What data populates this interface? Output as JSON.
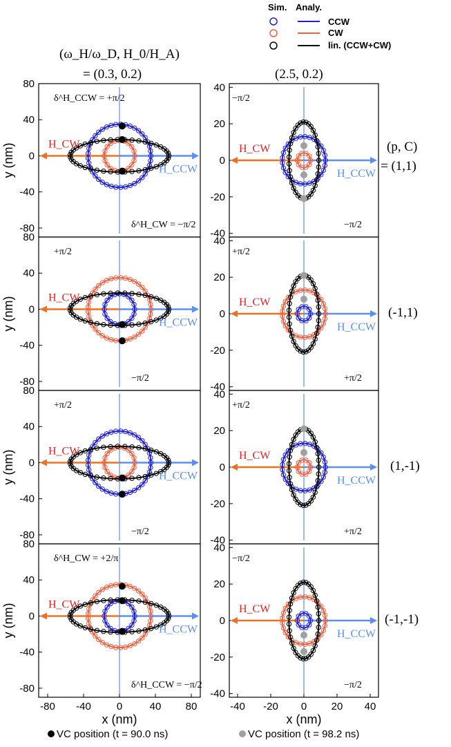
{
  "colors": {
    "ccw": "#1f1fd6",
    "cw": "#f06040",
    "lin": "#000000",
    "ccw_field": "#5b8ff0",
    "cw_field": "#f07020",
    "dot_black": "#000000",
    "dot_gray": "#a0a0a0"
  },
  "legend": {
    "sim_header": "Sim.",
    "analy_header": "Analy.",
    "entries": [
      {
        "label": "CCW",
        "color_key": "ccw"
      },
      {
        "label": "CW",
        "color_key": "cw"
      },
      {
        "label": "lin. (CCW+CW)",
        "color_key": "lin"
      }
    ]
  },
  "column_header": {
    "params_label": "(ω_H/ω_D, H_0/H_A)",
    "col1": "= (0.3, 0.2)",
    "col2": "(2.5, 0.2)"
  },
  "row_header": {
    "params_label": "(p, C)",
    "rows": [
      "= (1,1)",
      "(-1,1)",
      "(1,-1)",
      "(-1,-1)"
    ]
  },
  "bottom_legend": {
    "black": "VC position (t = 90.0 ns)",
    "gray": "VC position (t = 98.2 ns)"
  },
  "field_labels": {
    "h_cw": "H_CW",
    "h_ccw": "H_CCW"
  },
  "chart_data": [
    {
      "type": "scatter",
      "panel": "row1-col1",
      "xlabel": "",
      "ylabel": "y (nm)",
      "xlim": [
        -90,
        90
      ],
      "ylim": [
        -90,
        80
      ],
      "yticks": [
        -80,
        -40,
        0,
        40,
        80
      ],
      "series": [
        {
          "name": "CCW",
          "rx": 35,
          "ry": 35
        },
        {
          "name": "CW",
          "rx": 17,
          "ry": 17
        },
        {
          "name": "lin. (CCW+CW)",
          "rx": 55,
          "ry": 18
        }
      ],
      "annotations": [
        "δ^H_CCW = +π/2",
        "δ^H_CW = −π/2"
      ],
      "vc_black": [
        [
          3,
          33
        ],
        [
          3,
          18
        ],
        [
          3,
          -17
        ]
      ],
      "vc_gray": []
    },
    {
      "type": "scatter",
      "panel": "row1-col2",
      "xlabel": "",
      "ylabel": "",
      "xlim": [
        -45,
        45
      ],
      "ylim": [
        -42,
        42
      ],
      "yticks": [
        -40,
        -20,
        0,
        20,
        40
      ],
      "series": [
        {
          "name": "CCW",
          "rx": 13,
          "ry": 13
        },
        {
          "name": "CW",
          "rx": 4,
          "ry": 4
        },
        {
          "name": "lin. (CCW+CW)",
          "rx": 9,
          "ry": 21
        }
      ],
      "annotations": [
        "−π/2",
        "−π/2"
      ],
      "vc_black": [],
      "vc_gray": [
        [
          0,
          8
        ],
        [
          0,
          -8
        ],
        [
          0,
          -21
        ]
      ]
    },
    {
      "type": "scatter",
      "panel": "row2-col1",
      "xlabel": "",
      "ylabel": "y (nm)",
      "xlim": [
        -90,
        90
      ],
      "ylim": [
        -90,
        80
      ],
      "yticks": [
        -80,
        -40,
        0,
        40,
        80
      ],
      "series": [
        {
          "name": "CCW",
          "rx": 17,
          "ry": 17
        },
        {
          "name": "CW",
          "rx": 35,
          "ry": 35
        },
        {
          "name": "lin. (CCW+CW)",
          "rx": 55,
          "ry": 18
        }
      ],
      "annotations": [
        "+π/2",
        "−π/2"
      ],
      "vc_black": [
        [
          3,
          -17
        ],
        [
          3,
          -35
        ]
      ],
      "vc_gray": []
    },
    {
      "type": "scatter",
      "panel": "row2-col2",
      "xlabel": "",
      "ylabel": "",
      "xlim": [
        -45,
        45
      ],
      "ylim": [
        -42,
        42
      ],
      "yticks": [
        -40,
        -20,
        0,
        20,
        40
      ],
      "series": [
        {
          "name": "CCW",
          "rx": 4,
          "ry": 4
        },
        {
          "name": "CW",
          "rx": 13,
          "ry": 13
        },
        {
          "name": "lin. (CCW+CW)",
          "rx": 9,
          "ry": 21
        }
      ],
      "annotations": [
        "+π/2",
        "+π/2"
      ],
      "vc_black": [],
      "vc_gray": [
        [
          0,
          21
        ],
        [
          0,
          8
        ]
      ]
    },
    {
      "type": "scatter",
      "panel": "row3-col1",
      "xlabel": "",
      "ylabel": "y (nm)",
      "xlim": [
        -90,
        90
      ],
      "ylim": [
        -90,
        80
      ],
      "yticks": [
        -80,
        -40,
        0,
        40,
        80
      ],
      "series": [
        {
          "name": "CCW",
          "rx": 35,
          "ry": 35
        },
        {
          "name": "CW",
          "rx": 17,
          "ry": 17
        },
        {
          "name": "lin. (CCW+CW)",
          "rx": 55,
          "ry": 18
        }
      ],
      "annotations": [
        "+π/2",
        "−π/2"
      ],
      "vc_black": [
        [
          3,
          -17
        ],
        [
          3,
          -35
        ]
      ],
      "vc_gray": []
    },
    {
      "type": "scatter",
      "panel": "row3-col2",
      "xlabel": "",
      "ylabel": "",
      "xlim": [
        -45,
        45
      ],
      "ylim": [
        -42,
        42
      ],
      "yticks": [
        -40,
        -20,
        0,
        20,
        40
      ],
      "series": [
        {
          "name": "CCW",
          "rx": 13,
          "ry": 13
        },
        {
          "name": "CW",
          "rx": 4,
          "ry": 4
        },
        {
          "name": "lin. (CCW+CW)",
          "rx": 9,
          "ry": 21
        }
      ],
      "annotations": [
        "+π/2",
        "+π/2"
      ],
      "vc_black": [],
      "vc_gray": [
        [
          0,
          21
        ],
        [
          0,
          8
        ]
      ]
    },
    {
      "type": "scatter",
      "panel": "row4-col1",
      "xlabel": "x (nm)",
      "ylabel": "y (nm)",
      "xlim": [
        -90,
        90
      ],
      "ylim": [
        -90,
        80
      ],
      "yticks": [
        -80,
        -40,
        0,
        40,
        80
      ],
      "xticks": [
        -80,
        -40,
        0,
        40,
        80
      ],
      "series": [
        {
          "name": "CCW",
          "rx": 17,
          "ry": 17
        },
        {
          "name": "CW",
          "rx": 35,
          "ry": 35
        },
        {
          "name": "lin. (CCW+CW)",
          "rx": 55,
          "ry": 18
        }
      ],
      "annotations": [
        "δ^H_CW = +2/π",
        "δ^H_CCW = −π/2"
      ],
      "vc_black": [
        [
          3,
          33
        ],
        [
          3,
          17
        ],
        [
          3,
          -17
        ]
      ],
      "vc_gray": []
    },
    {
      "type": "scatter",
      "panel": "row4-col2",
      "xlabel": "x (nm)",
      "ylabel": "",
      "xlim": [
        -45,
        45
      ],
      "ylim": [
        -42,
        42
      ],
      "yticks": [
        -40,
        -20,
        0,
        20,
        40
      ],
      "xticks": [
        -40,
        -20,
        0,
        20,
        40
      ],
      "series": [
        {
          "name": "CCW",
          "rx": 4,
          "ry": 4
        },
        {
          "name": "CW",
          "rx": 13,
          "ry": 13
        },
        {
          "name": "lin. (CCW+CW)",
          "rx": 9,
          "ry": 21
        }
      ],
      "annotations": [
        "−π/2",
        "−π/2"
      ],
      "vc_black": [],
      "vc_gray": [
        [
          0,
          -8
        ],
        [
          0,
          -17
        ]
      ]
    }
  ]
}
